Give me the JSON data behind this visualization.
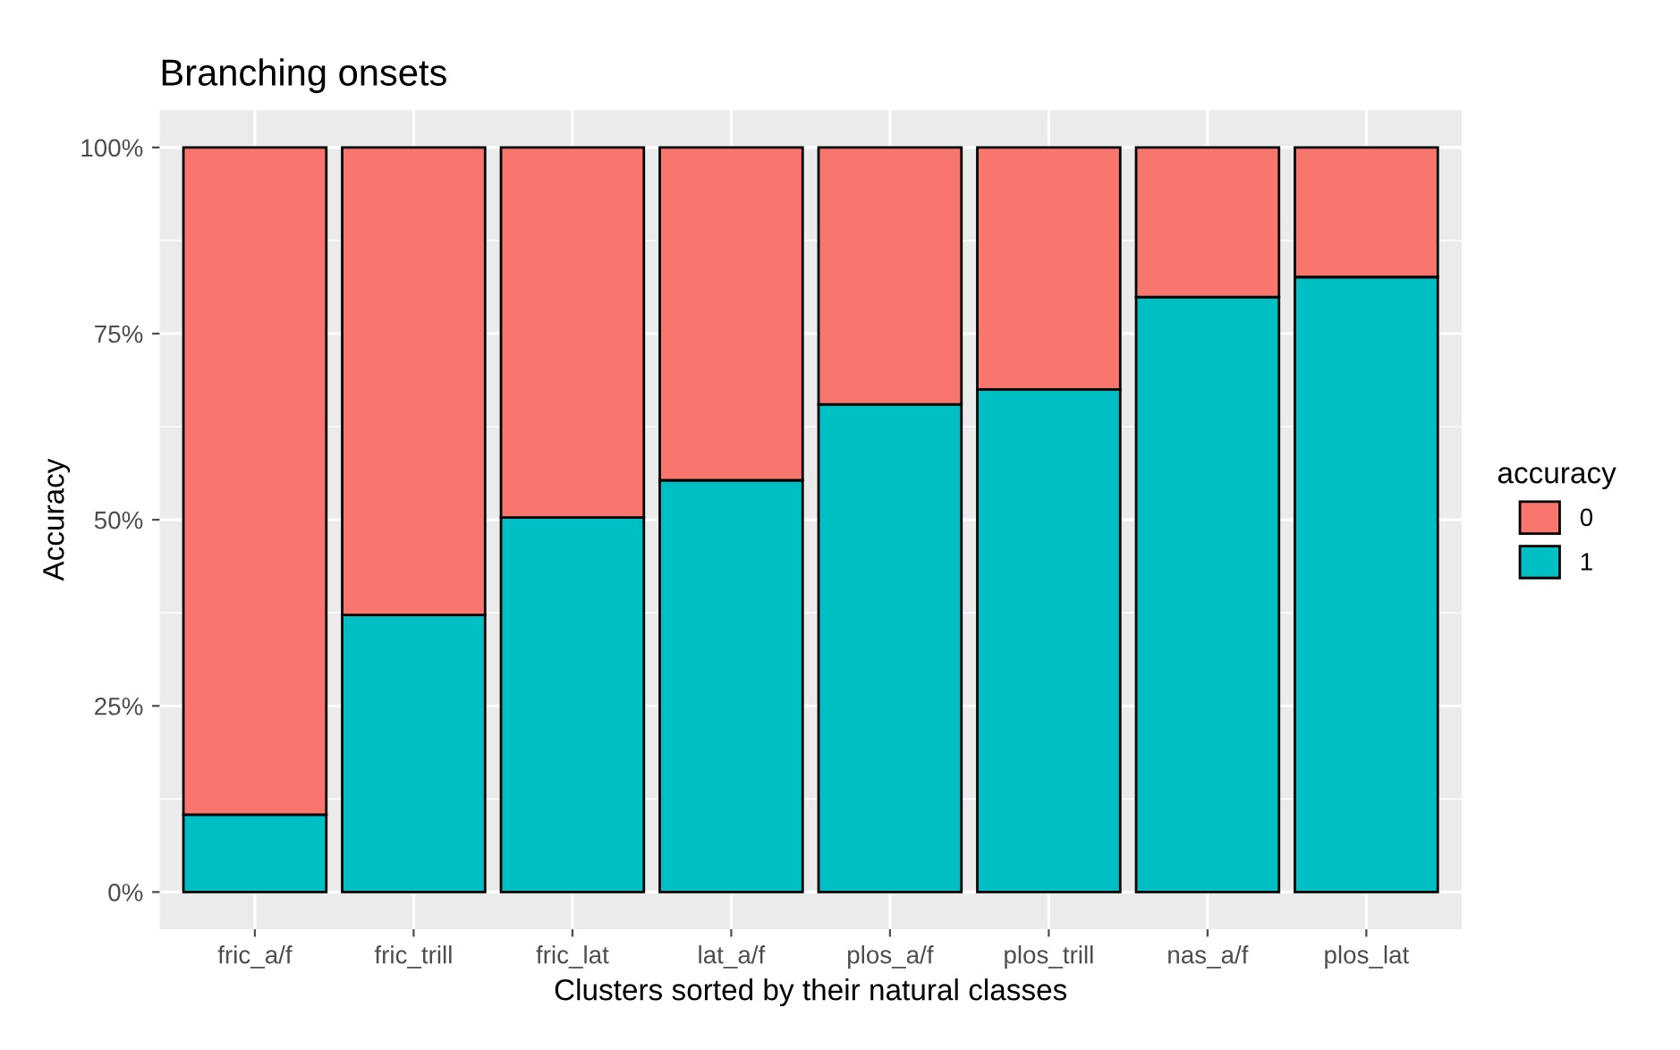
{
  "chart_data": {
    "type": "bar",
    "title": "Branching onsets",
    "xlabel": "Clusters sorted by their natural classes",
    "ylabel": "Accuracy",
    "legend_title": "accuracy",
    "categories": [
      "fric_a/f",
      "fric_trill",
      "fric_lat",
      "lat_a/f",
      "plos_a/f",
      "plos_trill",
      "nas_a/f",
      "plos_lat"
    ],
    "stacked": true,
    "series": [
      {
        "name": "1",
        "color": "#00bfc4",
        "values": [
          10.4,
          37.2,
          50.3,
          55.3,
          65.5,
          67.5,
          79.9,
          82.6
        ]
      },
      {
        "name": "0",
        "color": "#f8766d",
        "values": [
          89.6,
          62.8,
          49.7,
          44.7,
          34.5,
          32.5,
          20.1,
          17.4
        ]
      }
    ],
    "ylim": [
      -5,
      105
    ],
    "yticks": [
      {
        "value": 0,
        "label": "0%"
      },
      {
        "value": 25,
        "label": "25%"
      },
      {
        "value": 50,
        "label": "50%"
      },
      {
        "value": 75,
        "label": "75%"
      },
      {
        "value": 100,
        "label": "100%"
      }
    ],
    "grid": true,
    "legend": "right"
  }
}
